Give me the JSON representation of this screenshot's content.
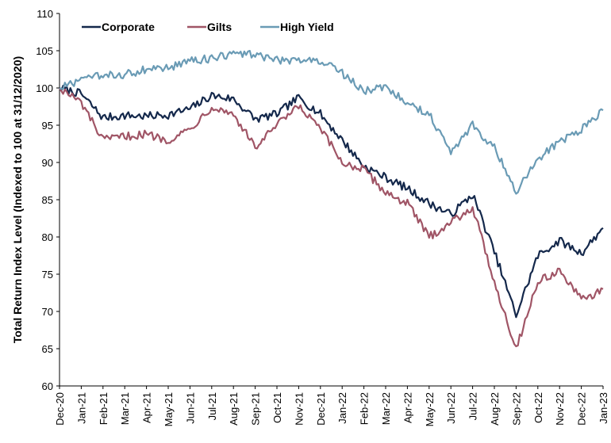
{
  "chart_data": {
    "type": "line",
    "ylabel": "Total Return Index Level (Indexed to 100 at 31/12/2020)",
    "xlabel": "",
    "ylim": [
      60,
      110
    ],
    "yticks": [
      60,
      65,
      70,
      75,
      80,
      85,
      90,
      95,
      100,
      105,
      110
    ],
    "x_tick_labels": [
      "Dec-20",
      "Jan-21",
      "Feb-21",
      "Mar-21",
      "Apr-21",
      "May-21",
      "Jun-21",
      "Jul-21",
      "Aug-21",
      "Sep-21",
      "Oct-21",
      "Nov-21",
      "Dec-21",
      "Jan-22",
      "Feb-22",
      "Mar-22",
      "Apr-22",
      "May-22",
      "Jun-22",
      "Jul-22",
      "Aug-22",
      "Sep-22",
      "Oct-22",
      "Nov-22",
      "Dec-22",
      "Jan-23"
    ],
    "x_start": "Dec-20",
    "x_end": "Jan-23",
    "legend_position": "top-left",
    "grid": false,
    "series": [
      {
        "name": "Corporate",
        "color": "#14284b",
        "x": [
          "Dec-20",
          "Jan-21",
          "Feb-21",
          "Mar-21",
          "Apr-21",
          "May-21",
          "Jun-21",
          "Jul-21",
          "Aug-21",
          "Sep-21",
          "Oct-21",
          "Nov-21",
          "Dec-21",
          "Jan-22",
          "Feb-22",
          "Mar-22",
          "Apr-22",
          "May-22",
          "Jun-22",
          "Jul-22",
          "Aug-22",
          "Sep-22",
          "Oct-22",
          "Nov-22",
          "Dec-22",
          "Jan-23"
        ],
        "values": [
          100.0,
          99.2,
          96.0,
          96.3,
          96.2,
          96.4,
          97.2,
          99.0,
          98.5,
          95.8,
          96.5,
          98.7,
          96.5,
          93.0,
          89.5,
          88.0,
          86.5,
          84.5,
          83.0,
          85.7,
          78.0,
          69.5,
          77.5,
          79.5,
          77.8,
          81.2
        ]
      },
      {
        "name": "Gilts",
        "color": "#a05566",
        "x": [
          "Dec-20",
          "Jan-21",
          "Feb-21",
          "Mar-21",
          "Apr-21",
          "May-21",
          "Jun-21",
          "Jul-21",
          "Aug-21",
          "Sep-21",
          "Oct-21",
          "Nov-21",
          "Dec-21",
          "Jan-22",
          "Feb-22",
          "Mar-22",
          "Apr-22",
          "May-22",
          "Jun-22",
          "Jul-22",
          "Aug-22",
          "Sep-22",
          "Oct-22",
          "Nov-22",
          "Dec-22",
          "Jan-23"
        ],
        "values": [
          100.0,
          98.0,
          93.0,
          93.5,
          93.8,
          93.0,
          94.5,
          97.5,
          96.5,
          92.0,
          95.0,
          97.5,
          94.5,
          90.0,
          89.0,
          86.0,
          84.5,
          80.0,
          82.0,
          84.0,
          74.0,
          65.0,
          74.0,
          75.5,
          71.5,
          73.0
        ]
      },
      {
        "name": "High Yield",
        "color": "#6a9bb5",
        "x": [
          "Dec-20",
          "Jan-21",
          "Feb-21",
          "Mar-21",
          "Apr-21",
          "May-21",
          "Jun-21",
          "Jul-21",
          "Aug-21",
          "Sep-21",
          "Oct-21",
          "Nov-21",
          "Dec-21",
          "Jan-22",
          "Feb-22",
          "Mar-22",
          "Apr-22",
          "May-22",
          "Jun-22",
          "Jul-22",
          "Aug-22",
          "Sep-22",
          "Oct-22",
          "Nov-22",
          "Dec-22",
          "Jan-23"
        ],
        "values": [
          100.0,
          101.0,
          101.7,
          101.8,
          102.5,
          102.7,
          103.6,
          104.0,
          104.5,
          104.5,
          103.7,
          103.8,
          103.7,
          102.0,
          99.5,
          100.3,
          98.0,
          96.5,
          91.5,
          95.0,
          92.0,
          86.0,
          90.5,
          92.8,
          94.5,
          97.0
        ]
      }
    ]
  }
}
